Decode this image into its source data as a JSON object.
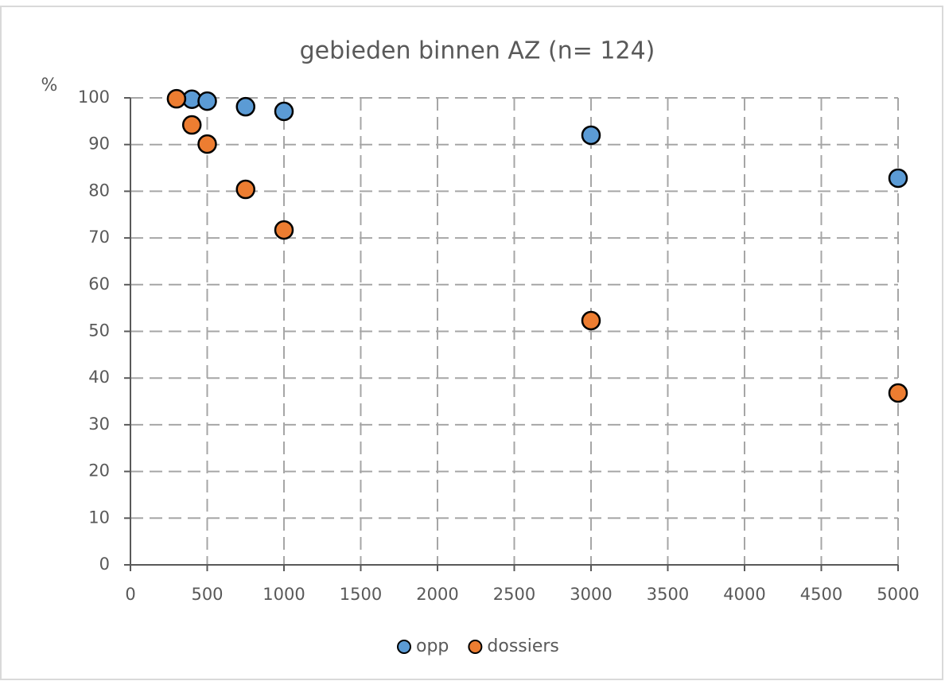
{
  "chart_data": {
    "type": "scatter",
    "title": "gebieden binnen AZ (n= 124)",
    "y_label": "%",
    "series": [
      {
        "name": "opp",
        "color": "#5b9bd5",
        "x": [
          400,
          500,
          750,
          1000,
          3000,
          5000
        ],
        "values": [
          99.7,
          99.3,
          98.1,
          97.1,
          92.0,
          82.8
        ]
      },
      {
        "name": "dossiers",
        "color": "#ed7d31",
        "x": [
          300,
          400,
          500,
          750,
          1000,
          3000,
          5000
        ],
        "values": [
          99.8,
          94.2,
          90.1,
          80.4,
          71.7,
          52.3,
          36.8
        ]
      }
    ],
    "xlim": [
      0,
      5000
    ],
    "xticks": [
      0,
      500,
      1000,
      1500,
      2000,
      2500,
      3000,
      3500,
      4000,
      4500,
      5000
    ],
    "ylim": [
      0,
      100
    ],
    "yticks": [
      0,
      10,
      20,
      30,
      40,
      50,
      60,
      70,
      80,
      90,
      100
    ],
    "grid": true,
    "legend": "bottom"
  }
}
